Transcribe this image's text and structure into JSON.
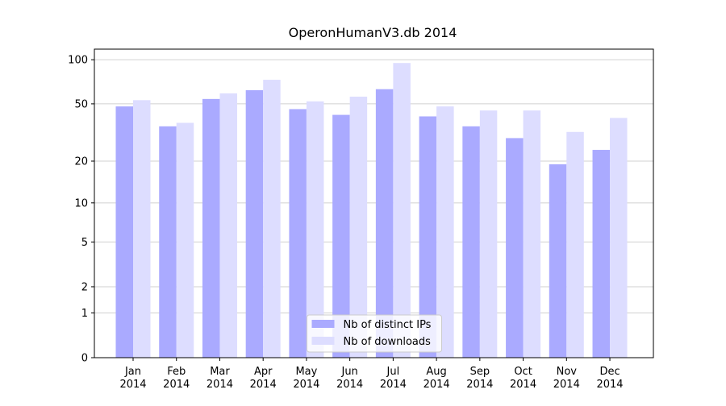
{
  "chart_data": {
    "type": "bar",
    "title": "OperonHumanV3.db 2014",
    "categories": [
      "Jan\n2014",
      "Feb\n2014",
      "Mar\n2014",
      "Apr\n2014",
      "May\n2014",
      "Jun\n2014",
      "Jul\n2014",
      "Aug\n2014",
      "Sep\n2014",
      "Oct\n2014",
      "Nov\n2014",
      "Dec\n2014"
    ],
    "series": [
      {
        "name": "Nb of distinct IPs",
        "color": "#aaaaff",
        "values": [
          48,
          35,
          54,
          62,
          46,
          42,
          63,
          41,
          35,
          29,
          19,
          24
        ]
      },
      {
        "name": "Nb of downloads",
        "color": "#ddddff",
        "values": [
          53,
          37,
          59,
          73,
          52,
          56,
          95,
          48,
          45,
          45,
          32,
          40
        ]
      }
    ],
    "yscale": "log1p",
    "ylim": [
      0,
      118
    ],
    "yticks": [
      0,
      1,
      2,
      5,
      10,
      20,
      50,
      100
    ],
    "grid": true,
    "legend": "lower center"
  }
}
